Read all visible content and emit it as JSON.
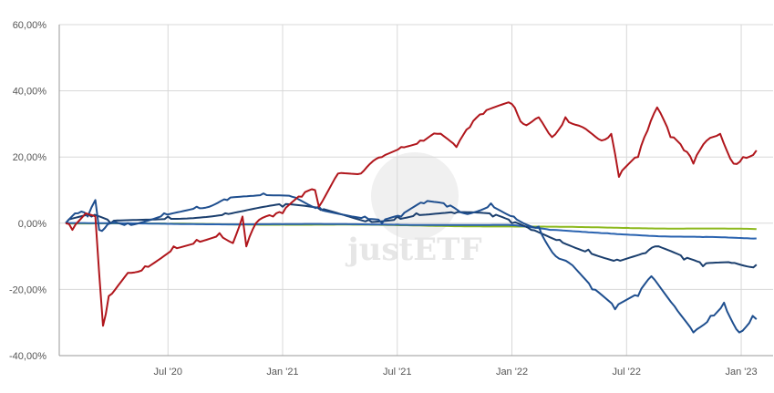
{
  "chart_data": {
    "type": "line",
    "title": "",
    "xlabel": "",
    "ylabel": "",
    "watermark": "justETF",
    "x_unit": "months since Jan 2020",
    "xlim": [
      0,
      37.3
    ],
    "ylim": [
      -40,
      60
    ],
    "yticks": [
      {
        "v": 60,
        "label": "60,00%"
      },
      {
        "v": 40,
        "label": "40,00%"
      },
      {
        "v": 20,
        "label": "20,00%"
      },
      {
        "v": 0,
        "label": "0,00%"
      },
      {
        "v": -20,
        "label": "-20,00%"
      },
      {
        "v": -40,
        "label": "-40,00%"
      }
    ],
    "xticks": [
      {
        "v": 6,
        "label": "Jul '20"
      },
      {
        "v": 12,
        "label": "Jan '21"
      },
      {
        "v": 18,
        "label": "Jul '21"
      },
      {
        "v": 24,
        "label": "Jan '22"
      },
      {
        "v": 30,
        "label": "Jul '22"
      },
      {
        "v": 36,
        "label": "Jan '23"
      }
    ],
    "grid": true,
    "legend": "none",
    "series": [
      {
        "name": "green",
        "color": "#8db91e",
        "points": [
          [
            0.65,
            0
          ],
          [
            6,
            -0.2
          ],
          [
            12,
            -0.4
          ],
          [
            18,
            -0.6
          ],
          [
            24,
            -1
          ],
          [
            30,
            -1.4
          ],
          [
            36.8,
            -1.8
          ]
        ]
      },
      {
        "name": "light-blue",
        "color": "#2a63b0",
        "points": [
          [
            0.65,
            0
          ],
          [
            6,
            -0.2
          ],
          [
            12,
            -0.3
          ],
          [
            18,
            -0.4
          ],
          [
            24,
            -0.6
          ],
          [
            26,
            -2
          ],
          [
            29,
            -3
          ],
          [
            32,
            -4
          ],
          [
            34,
            -4.2
          ],
          [
            36.8,
            -4.6
          ]
        ]
      },
      {
        "name": "dark-blue",
        "color": "#1b3f6e",
        "points": [
          [
            0.65,
            0
          ],
          [
            2,
            2
          ],
          [
            3,
            0
          ],
          [
            6,
            2
          ],
          [
            9,
            3
          ],
          [
            12,
            5
          ],
          [
            14,
            4
          ],
          [
            16.5,
            1
          ],
          [
            18,
            2
          ],
          [
            19,
            3
          ],
          [
            21,
            3
          ],
          [
            23,
            2
          ],
          [
            24,
            0
          ],
          [
            25,
            -2
          ],
          [
            26.5,
            -5
          ],
          [
            28,
            -8
          ],
          [
            29.5,
            -11
          ],
          [
            31,
            -9
          ],
          [
            31.5,
            -7
          ],
          [
            33,
            -11
          ],
          [
            34,
            -13
          ],
          [
            35.5,
            -12
          ],
          [
            36.8,
            -12.5
          ]
        ]
      },
      {
        "name": "blue",
        "color": "#1f4f8f",
        "points": [
          [
            0.65,
            0
          ],
          [
            1.3,
            3
          ],
          [
            1.8,
            2
          ],
          [
            2.2,
            7
          ],
          [
            2.4,
            -2
          ],
          [
            3,
            0
          ],
          [
            3.9,
            0
          ],
          [
            5.8,
            3
          ],
          [
            7.5,
            5
          ],
          [
            9.1,
            7
          ],
          [
            11,
            9
          ],
          [
            12.5,
            8
          ],
          [
            13.9,
            5
          ],
          [
            16.3,
            2
          ],
          [
            17.2,
            0
          ],
          [
            18.2,
            2
          ],
          [
            19.4,
            6
          ],
          [
            20.6,
            5
          ],
          [
            21.5,
            3
          ],
          [
            22.9,
            6
          ],
          [
            24.1,
            2
          ],
          [
            25.4,
            -1
          ],
          [
            26.3,
            -10
          ],
          [
            27,
            -12
          ],
          [
            28.2,
            -20
          ],
          [
            29.4,
            -26
          ],
          [
            30.6,
            -22
          ],
          [
            31.3,
            -16
          ],
          [
            32.5,
            -25
          ],
          [
            33.5,
            -33
          ],
          [
            34.4,
            -28
          ],
          [
            35.1,
            -24
          ],
          [
            35.9,
            -33
          ],
          [
            36.6,
            -28
          ],
          [
            36.8,
            -29
          ]
        ]
      },
      {
        "name": "red",
        "color": "#b0161c",
        "points": [
          [
            0.65,
            0
          ],
          [
            1,
            -2
          ],
          [
            1.7,
            3
          ],
          [
            2.2,
            2
          ],
          [
            2.6,
            -31
          ],
          [
            2.9,
            -22
          ],
          [
            3.9,
            -15
          ],
          [
            4.8,
            -13
          ],
          [
            6.3,
            -7
          ],
          [
            7.5,
            -5
          ],
          [
            8.7,
            -3
          ],
          [
            9.4,
            -6
          ],
          [
            9.9,
            2
          ],
          [
            10.1,
            -7
          ],
          [
            10.6,
            0
          ],
          [
            11.5,
            2
          ],
          [
            12,
            3
          ],
          [
            13,
            8
          ],
          [
            13.7,
            10
          ],
          [
            13.9,
            5
          ],
          [
            14.9,
            15
          ],
          [
            16.1,
            15
          ],
          [
            17.2,
            20
          ],
          [
            18.2,
            23
          ],
          [
            19.2,
            25
          ],
          [
            20.1,
            27
          ],
          [
            21.1,
            23
          ],
          [
            21.8,
            29
          ],
          [
            22.5,
            33
          ],
          [
            24,
            36
          ],
          [
            24.6,
            30
          ],
          [
            25.4,
            32
          ],
          [
            26.1,
            26
          ],
          [
            26.8,
            32
          ],
          [
            27.7,
            29
          ],
          [
            28.7,
            25
          ],
          [
            29.2,
            27
          ],
          [
            29.6,
            14
          ],
          [
            30.6,
            20
          ],
          [
            31.1,
            28
          ],
          [
            31.6,
            35
          ],
          [
            32.3,
            26
          ],
          [
            33,
            22
          ],
          [
            33.5,
            18
          ],
          [
            34.2,
            25
          ],
          [
            34.9,
            27
          ],
          [
            35.6,
            18
          ],
          [
            36.1,
            20
          ],
          [
            36.8,
            22
          ]
        ]
      }
    ]
  }
}
